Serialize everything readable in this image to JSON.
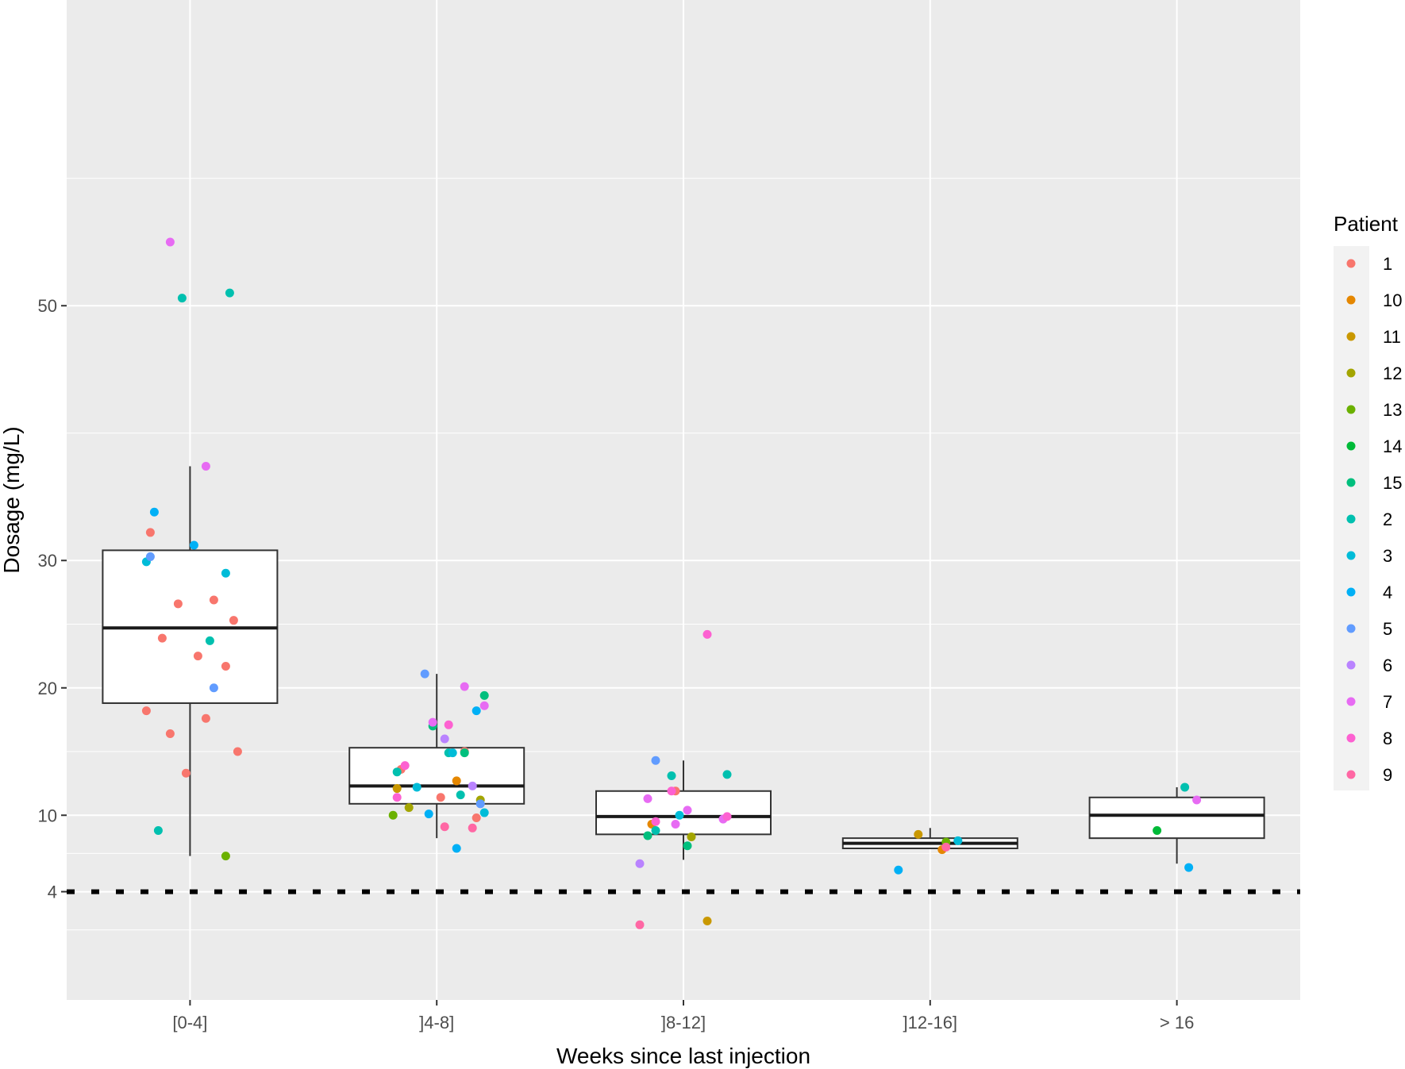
{
  "chart_data": {
    "type": "boxplot",
    "xlabel": "Weeks since last injection",
    "ylabel": "Dosage (mg/L)",
    "ylim": [
      -4.5,
      74
    ],
    "y_ticks": [
      4,
      10,
      20,
      30,
      50
    ],
    "reference_line": {
      "y": 4,
      "style": "dotted"
    },
    "grid": true,
    "legend": {
      "title": "Patient",
      "position": "right"
    },
    "categories": [
      "[0-4]",
      "]4-8]",
      "]8-12]",
      "]12-16]",
      "> 16"
    ],
    "boxes": [
      {
        "category": "[0-4]",
        "lower_whisker": 6.8,
        "q1": 18.8,
        "median": 24.7,
        "q3": 30.8,
        "upper_whisker": 37.4
      },
      {
        "category": "]4-8]",
        "lower_whisker": 8.2,
        "q1": 10.9,
        "median": 12.3,
        "q3": 15.3,
        "upper_whisker": 21.1
      },
      {
        "category": "]8-12]",
        "lower_whisker": 6.5,
        "q1": 8.5,
        "median": 9.9,
        "q3": 11.9,
        "upper_whisker": 14.3
      },
      {
        "category": "]12-16]",
        "lower_whisker": 7.4,
        "q1": 7.4,
        "median": 7.8,
        "q3": 8.2,
        "upper_whisker": 9.0
      },
      {
        "category": "> 16",
        "lower_whisker": 6.2,
        "q1": 8.2,
        "median": 10.0,
        "q3": 11.4,
        "upper_whisker": 12.2
      }
    ],
    "series": [
      {
        "name": "1",
        "color": "#F8766D",
        "points": [
          [
            "[0-4]",
            32.2
          ],
          [
            "[0-4]",
            26.9
          ],
          [
            "[0-4]",
            26.6
          ],
          [
            "[0-4]",
            25.3
          ],
          [
            "[0-4]",
            23.9
          ],
          [
            "[0-4]",
            22.5
          ],
          [
            "[0-4]",
            21.7
          ],
          [
            "[0-4]",
            18.2
          ],
          [
            "[0-4]",
            17.6
          ],
          [
            "[0-4]",
            16.4
          ],
          [
            "[0-4]",
            15.0
          ],
          [
            "[0-4]",
            13.3
          ],
          [
            "]4-8]",
            15.0
          ],
          [
            "]4-8]",
            13.6
          ],
          [
            "]4-8]",
            11.4
          ],
          [
            "]4-8]",
            9.8
          ],
          [
            "]8-12]",
            11.9
          ]
        ]
      },
      {
        "name": "10",
        "color": "#E58700",
        "points": [
          [
            "]4-8]",
            12.7
          ],
          [
            "]8-12]",
            9.3
          ],
          [
            "]12-16]",
            7.3
          ]
        ]
      },
      {
        "name": "11",
        "color": "#C99800",
        "points": [
          [
            "]4-8]",
            12.1
          ],
          [
            "]8-12]",
            1.7
          ],
          [
            "]12-16]",
            8.5
          ]
        ]
      },
      {
        "name": "12",
        "color": "#A3A500",
        "points": [
          [
            "]4-8]",
            11.2
          ],
          [
            "]4-8]",
            10.6
          ],
          [
            "]8-12]",
            8.3
          ]
        ]
      },
      {
        "name": "13",
        "color": "#6BB100",
        "points": [
          [
            "[0-4]",
            6.8
          ],
          [
            "]4-8]",
            10.0
          ],
          [
            "]12-16]",
            7.9
          ]
        ]
      },
      {
        "name": "14",
        "color": "#00BA38",
        "points": [
          [
            "> 16",
            8.8
          ]
        ]
      },
      {
        "name": "15",
        "color": "#00BF7D",
        "points": [
          [
            "]4-8]",
            19.4
          ],
          [
            "]4-8]",
            17.0
          ],
          [
            "]4-8]",
            14.9
          ],
          [
            "]8-12]",
            8.4
          ],
          [
            "]8-12]",
            7.6
          ]
        ]
      },
      {
        "name": "2",
        "color": "#00C0AF",
        "points": [
          [
            "[0-4]",
            51.0
          ],
          [
            "[0-4]",
            50.6
          ],
          [
            "[0-4]",
            23.7
          ],
          [
            "[0-4]",
            8.8
          ],
          [
            "]4-8]",
            14.9
          ],
          [
            "]4-8]",
            13.4
          ],
          [
            "]4-8]",
            11.6
          ],
          [
            "]8-12]",
            13.1
          ],
          [
            "]8-12]",
            13.2
          ],
          [
            "]8-12]",
            8.8
          ],
          [
            "> 16",
            12.2
          ]
        ]
      },
      {
        "name": "3",
        "color": "#00BCD8",
        "points": [
          [
            "[0-4]",
            29.0
          ],
          [
            "[0-4]",
            29.9
          ],
          [
            "]4-8]",
            14.9
          ],
          [
            "]4-8]",
            12.2
          ],
          [
            "]4-8]",
            10.2
          ],
          [
            "]8-12]",
            10.0
          ],
          [
            "]12-16]",
            8.0
          ]
        ]
      },
      {
        "name": "4",
        "color": "#00B0F6",
        "points": [
          [
            "[0-4]",
            33.8
          ],
          [
            "[0-4]",
            31.2
          ],
          [
            "]4-8]",
            18.2
          ],
          [
            "]4-8]",
            10.1
          ],
          [
            "]4-8]",
            7.4
          ],
          [
            "]12-16]",
            5.7
          ],
          [
            "> 16",
            5.9
          ]
        ]
      },
      {
        "name": "5",
        "color": "#619CFF",
        "points": [
          [
            "[0-4]",
            30.3
          ],
          [
            "[0-4]",
            20.0
          ],
          [
            "]4-8]",
            21.1
          ],
          [
            "]4-8]",
            10.9
          ],
          [
            "]8-12]",
            14.3
          ]
        ]
      },
      {
        "name": "6",
        "color": "#B983FF",
        "points": [
          [
            "]4-8]",
            16.0
          ],
          [
            "]4-8]",
            12.3
          ],
          [
            "]8-12]",
            6.2
          ]
        ]
      },
      {
        "name": "7",
        "color": "#E76BF3",
        "points": [
          [
            "[0-4]",
            37.4
          ],
          [
            "[0-4]",
            55.0
          ],
          [
            "]4-8]",
            18.6
          ],
          [
            "]4-8]",
            17.3
          ],
          [
            "]4-8]",
            20.1
          ],
          [
            "]8-12]",
            11.3
          ],
          [
            "]8-12]",
            10.4
          ],
          [
            "]8-12]",
            9.7
          ],
          [
            "]8-12]",
            9.3
          ],
          [
            "> 16",
            11.2
          ]
        ]
      },
      {
        "name": "8",
        "color": "#FD61D1",
        "points": [
          [
            "]4-8]",
            13.9
          ],
          [
            "]4-8]",
            17.1
          ],
          [
            "]4-8]",
            11.4
          ],
          [
            "]8-12]",
            24.2
          ],
          [
            "]8-12]",
            11.9
          ],
          [
            "]8-12]",
            9.9
          ],
          [
            "]8-12]",
            9.5
          ]
        ]
      },
      {
        "name": "9",
        "color": "#FF67A4",
        "points": [
          [
            "]4-8]",
            9.1
          ],
          [
            "]4-8]",
            9.0
          ],
          [
            "]8-12]",
            1.4
          ],
          [
            "]12-16]",
            7.5
          ]
        ]
      }
    ]
  }
}
